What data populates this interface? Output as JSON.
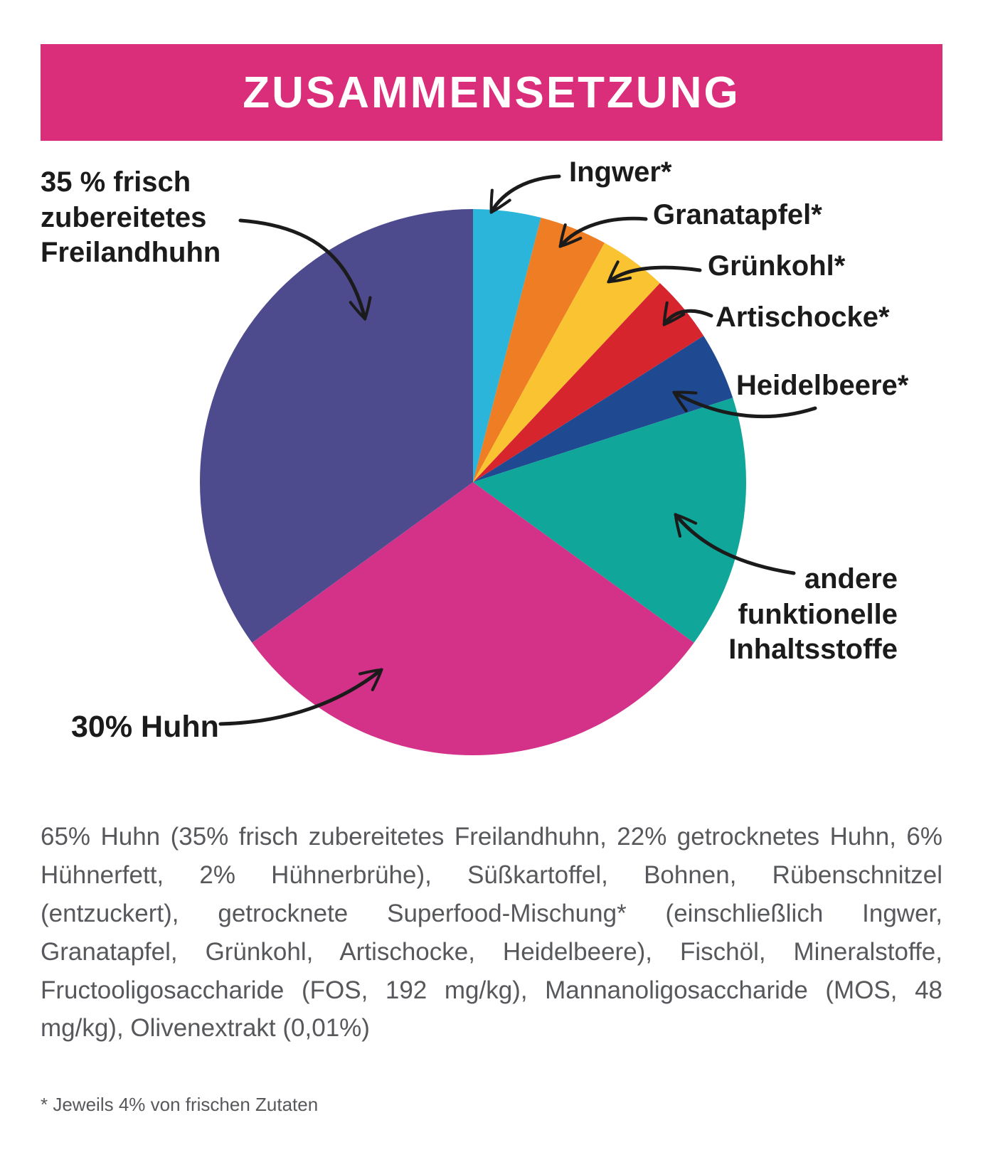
{
  "header": {
    "title": "ZUSAMMENSETZUNG",
    "background": "#da2e7a"
  },
  "chart_data": {
    "type": "pie",
    "title": "ZUSAMMENSETZUNG",
    "start_angle_deg": 0,
    "direction": "clockwise",
    "unit": "%",
    "slices": [
      {
        "id": "ingwer",
        "label": "Ingwer*",
        "value": 4,
        "color": "#2bb5db"
      },
      {
        "id": "granatapfel",
        "label": "Granatapfel*",
        "value": 4,
        "color": "#ee7d23"
      },
      {
        "id": "gruenkohl",
        "label": "Grünkohl*",
        "value": 4,
        "color": "#f9c331"
      },
      {
        "id": "artischocke",
        "label": "Artischocke*",
        "value": 4,
        "color": "#d7252e"
      },
      {
        "id": "heidelbeere",
        "label": "Heidelbeere*",
        "value": 4,
        "color": "#1f4a91"
      },
      {
        "id": "andere-funktionelle-inhaltsstoffe",
        "label": "andere funktionelle Inhaltsstoffe",
        "value": 15,
        "color": "#10a79a"
      },
      {
        "id": "huhn-30",
        "label": "30% Huhn",
        "value": 30,
        "color": "#d43189"
      },
      {
        "id": "freilandhuhn-35",
        "label": "35 % frisch zubereitetes Freilandhuhn",
        "value": 35,
        "color": "#4e4a8e"
      }
    ]
  },
  "ingredients": {
    "text": "65% Huhn (35% frisch zubereitetes Freilandhuhn, 22% getrocknetes Huhn, 6% Hühnerfett, 2% Hühnerbrühe), Süßkartoffel, Bohnen, Rübenschnitzel (entzuckert), getrocknete Superfood-Mischung* (einschließlich Ingwer, Granatapfel, Grünkohl, Artischocke, Heidelbeere), Fischöl, Mineralstoffe, Fructooligosaccharide (FOS, 192 mg/kg), Mannanoligosaccharide (MOS, 48 mg/kg), Olivenextrakt (0,01%)",
    "footnote": "* Jeweils 4% von frischen Zutaten"
  }
}
